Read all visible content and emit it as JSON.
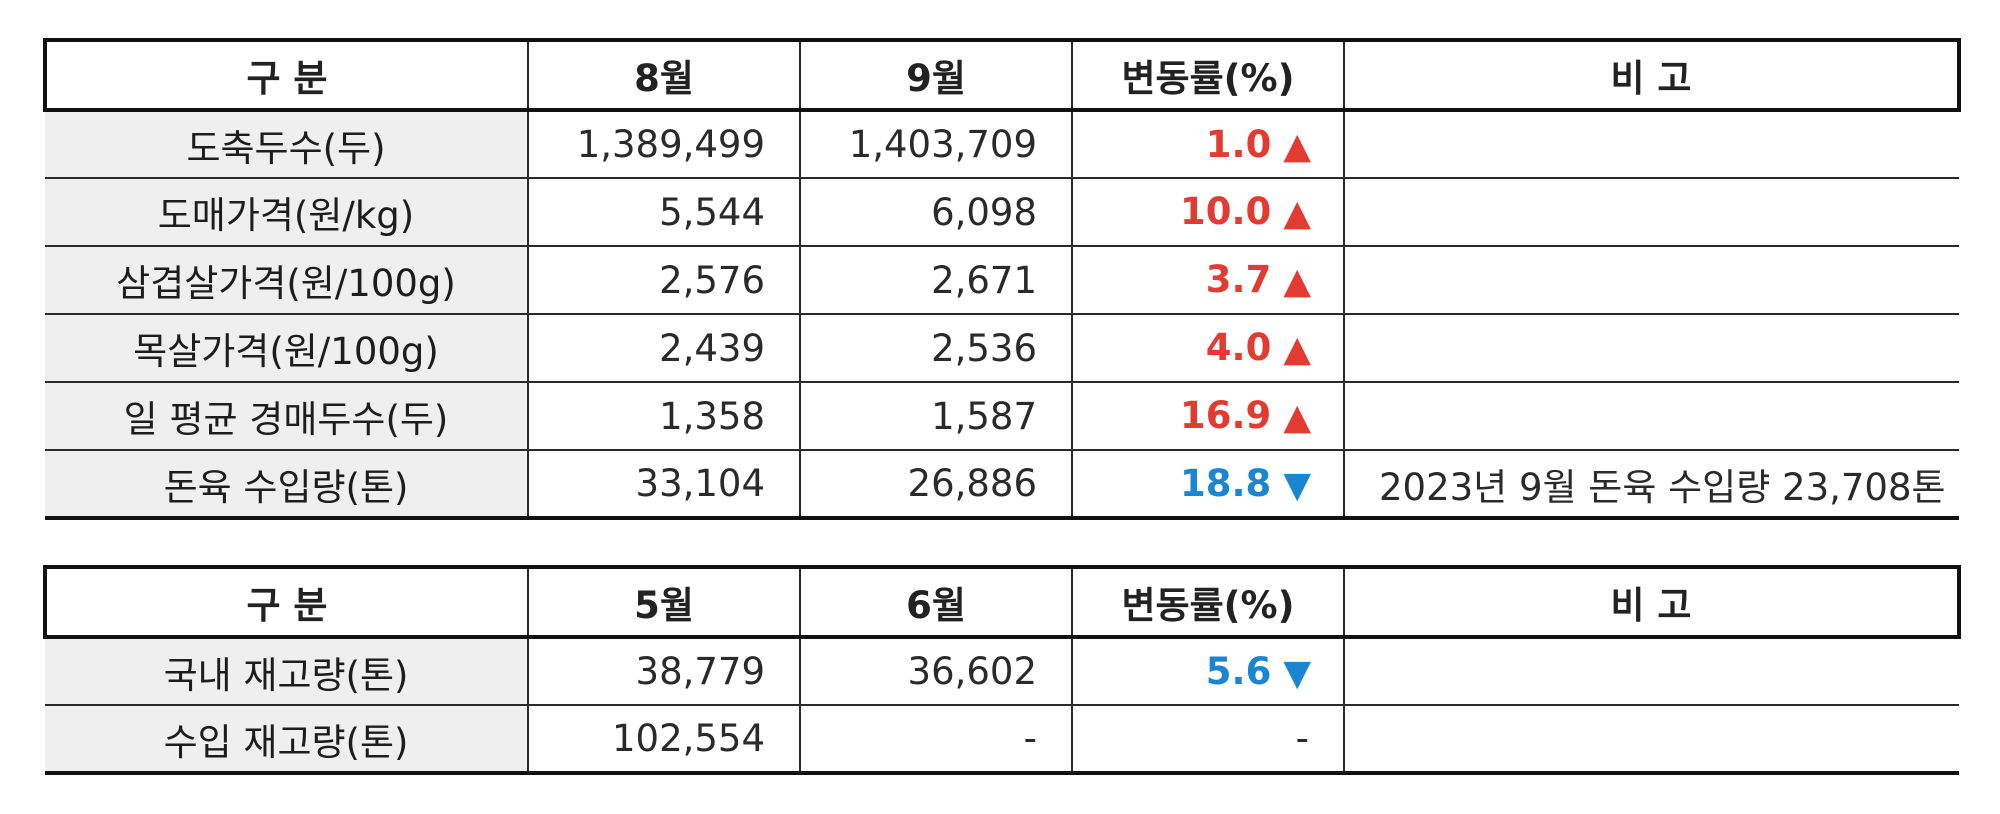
{
  "colors": {
    "up": "#e23b32",
    "down": "#1a86d0",
    "label_bg": "#efefef"
  },
  "table1": {
    "headers": [
      "구  분",
      "8월",
      "9월",
      "변동률(%)",
      "비  고"
    ],
    "rows": [
      {
        "label": "도축두수(두)",
        "prev": "1,389,499",
        "curr": "1,403,709",
        "rate": "1.0",
        "direction": "up",
        "arrow": "▲",
        "note": ""
      },
      {
        "label": "도매가격(원/kg)",
        "prev": "5,544",
        "curr": "6,098",
        "rate": "10.0",
        "direction": "up",
        "arrow": "▲",
        "note": ""
      },
      {
        "label": "삼겹살가격(원/100g)",
        "prev": "2,576",
        "curr": "2,671",
        "rate": "3.7",
        "direction": "up",
        "arrow": "▲",
        "note": ""
      },
      {
        "label": "목살가격(원/100g)",
        "prev": "2,439",
        "curr": "2,536",
        "rate": "4.0",
        "direction": "up",
        "arrow": "▲",
        "note": ""
      },
      {
        "label": "일 평균 경매두수(두)",
        "prev": "1,358",
        "curr": "1,587",
        "rate": "16.9",
        "direction": "up",
        "arrow": "▲",
        "note": ""
      },
      {
        "label": "돈육 수입량(톤)",
        "prev": "33,104",
        "curr": "26,886",
        "rate": "18.8",
        "direction": "down",
        "arrow": "▼",
        "note": "2023년 9월 돈육 수입량 23,708톤"
      }
    ]
  },
  "table2": {
    "headers": [
      "구  분",
      "5월",
      "6월",
      "변동률(%)",
      "비  고"
    ],
    "rows": [
      {
        "label": "국내 재고량(톤)",
        "prev": "38,779",
        "curr": "36,602",
        "rate": "5.6",
        "direction": "down",
        "arrow": "▼",
        "note": ""
      },
      {
        "label": "수입 재고량(톤)",
        "prev": "102,554",
        "curr": "-",
        "rate": "-",
        "direction": "flat",
        "arrow": "",
        "note": ""
      }
    ]
  }
}
